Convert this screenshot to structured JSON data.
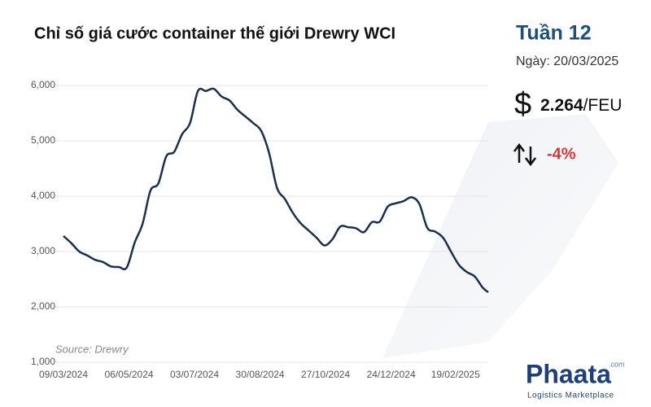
{
  "chart_data": {
    "type": "line",
    "title": "Chỉ số giá cước container thế giới Drewry WCI",
    "source": "Source: Drewry",
    "x": [
      "09/03/2024",
      "16/03/2024",
      "23/03/2024",
      "30/03/2024",
      "06/04/2024",
      "13/04/2024",
      "20/04/2024",
      "27/04/2024",
      "04/05/2024",
      "11/05/2024",
      "18/05/2024",
      "25/05/2024",
      "01/06/2024",
      "08/06/2024",
      "15/06/2024",
      "22/06/2024",
      "29/06/2024",
      "06/07/2024",
      "13/07/2024",
      "20/07/2024",
      "27/07/2024",
      "03/08/2024",
      "10/08/2024",
      "17/08/2024",
      "24/08/2024",
      "31/08/2024",
      "07/09/2024",
      "14/09/2024",
      "21/09/2024",
      "28/09/2024",
      "05/10/2024",
      "12/10/2024",
      "19/10/2024",
      "26/10/2024",
      "02/11/2024",
      "09/11/2024",
      "16/11/2024",
      "23/11/2024",
      "30/11/2024",
      "07/12/2024",
      "14/12/2024",
      "21/12/2024",
      "28/12/2024",
      "04/01/2025",
      "11/01/2025",
      "18/01/2025",
      "25/01/2025",
      "01/02/2025",
      "08/02/2025",
      "15/02/2025",
      "22/02/2025",
      "01/03/2025",
      "08/03/2025",
      "15/03/2025",
      "20/03/2025"
    ],
    "series": [
      {
        "name": "Drewry WCI",
        "color": "#1b2f4e",
        "values": [
          3280,
          3150,
          3000,
          2930,
          2850,
          2810,
          2730,
          2720,
          2710,
          3160,
          3500,
          4100,
          4230,
          4720,
          4800,
          5120,
          5320,
          5900,
          5900,
          5940,
          5800,
          5730,
          5560,
          5440,
          5320,
          5180,
          4780,
          4150,
          3950,
          3700,
          3510,
          3380,
          3250,
          3110,
          3220,
          3450,
          3440,
          3420,
          3350,
          3530,
          3540,
          3810,
          3870,
          3910,
          3980,
          3860,
          3430,
          3360,
          3250,
          3000,
          2760,
          2630,
          2550,
          2350,
          2264
        ]
      }
    ],
    "xlim": [
      "09/03/2024",
      "20/03/2025"
    ],
    "xticks": [
      "09/03/2024",
      "06/05/2024",
      "03/07/2024",
      "30/08/2024",
      "27/10/2024",
      "24/12/2024",
      "19/02/2025"
    ],
    "ylim": [
      1000,
      6000
    ],
    "yticks": [
      {
        "value": 1000,
        "label": "1,000"
      },
      {
        "value": 2000,
        "label": "2,000"
      },
      {
        "value": 3000,
        "label": "3,000"
      },
      {
        "value": 4000,
        "label": "4,000"
      },
      {
        "value": 5000,
        "label": "5,000"
      },
      {
        "value": 6000,
        "label": "6,000"
      }
    ],
    "grid": true
  },
  "panel": {
    "week": "Tuần 12",
    "date": "Ngày: 20/03/2025",
    "currency": "$",
    "price": "2.264",
    "unit": "/FEU",
    "change": "-4%"
  },
  "logo": {
    "name": "Phaata",
    "domain": ".com",
    "tagline": "Logistics Marketplace"
  }
}
